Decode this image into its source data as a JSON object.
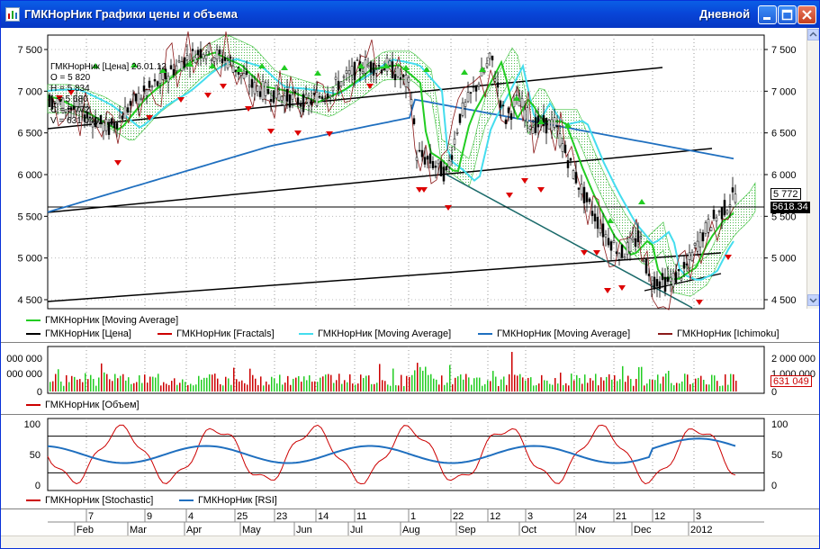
{
  "window": {
    "title": "ГМКНорНик Графики цены и объема",
    "timeframe": "Дневной"
  },
  "price_panel": {
    "ohlc": {
      "header": "ГМКНорНик [Цена] 26.01.12",
      "o": "O = 5 820",
      "h": "H = 5 834",
      "l": "L = 5 680",
      "c": "C = 5 772",
      "v": "V = 631 049"
    },
    "y_ticks": [
      "7 500",
      "7 000",
      "6 500",
      "6 000",
      "5 500",
      "5 000",
      "4 500"
    ],
    "current_price": "5 772",
    "crosshair_price": "5618.34",
    "legend": [
      {
        "label": "ГМКНорНик [Moving Average]",
        "color": "#22cc22"
      },
      {
        "label": "ГМКНорНик [Цена]",
        "color": "#000000"
      },
      {
        "label": "ГМКНорНик [Fractals]",
        "color": "#cc0000"
      },
      {
        "label": "ГМКНорНик [Moving Average]",
        "color": "#44ddee"
      },
      {
        "label": "ГМКНорНик [Moving Average]",
        "color": "#1f6fbf"
      },
      {
        "label": "ГМКНорНик [Ichimoku]",
        "color": "#8b1a1a"
      }
    ]
  },
  "volume_panel": {
    "left_ticks": [
      "000 000",
      "000 000",
      "0"
    ],
    "right_ticks": [
      "2 000 000",
      "1 000 000",
      "0"
    ],
    "current_volume": "631 049",
    "legend": [
      {
        "label": "ГМКНорНик [Объем]",
        "color": "#cc0000"
      }
    ]
  },
  "osc_panel": {
    "y_ticks": [
      "100",
      "50",
      "0"
    ],
    "legend": [
      {
        "label": "ГМКНорНик [Stochastic]",
        "color": "#cc0000"
      },
      {
        "label": "ГМКНорНик [RSI]",
        "color": "#1f6fbf"
      }
    ]
  },
  "date_axis": {
    "days": [
      "7",
      "9",
      "4",
      "25",
      "23",
      "14",
      "11",
      "1",
      "22",
      "12",
      "3",
      "24",
      "21",
      "12",
      "3"
    ],
    "months": [
      "Feb",
      "Mar",
      "Apr",
      "May",
      "Jun",
      "Jul",
      "Aug",
      "Sep",
      "Oct",
      "Nov",
      "Dec",
      "2012"
    ]
  },
  "icons": {
    "minimize": "minimize-icon",
    "maximize": "maximize-icon",
    "close": "close-icon",
    "app": "chart-app-icon"
  }
}
